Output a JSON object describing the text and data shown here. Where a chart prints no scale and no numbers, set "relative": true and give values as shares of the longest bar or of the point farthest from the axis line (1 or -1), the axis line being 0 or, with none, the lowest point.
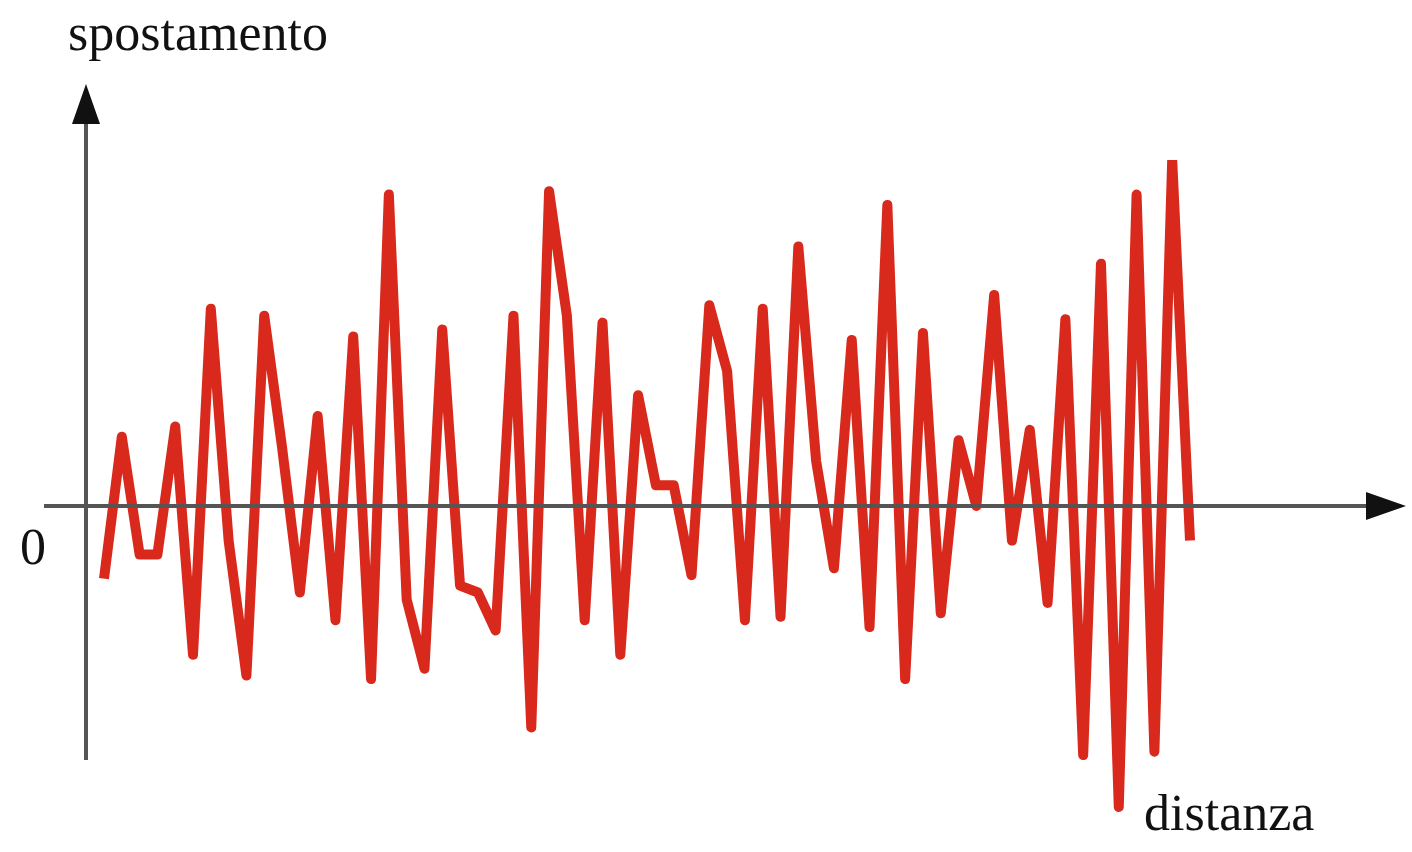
{
  "chart_data": {
    "type": "line",
    "relative": true,
    "xlabel": "distanza",
    "ylabel": "spostamento",
    "annotations": [
      "0"
    ],
    "legend": false,
    "marker": "none",
    "line_style": "solid",
    "categories": [
      null,
      null,
      null,
      null,
      null,
      null,
      null,
      null,
      null,
      null,
      null,
      null,
      null,
      null,
      null,
      null,
      null,
      null,
      null,
      null,
      null,
      null,
      null,
      null,
      null,
      null,
      null,
      null,
      null,
      null,
      null,
      null,
      null,
      null,
      null,
      null,
      null,
      null,
      null,
      null,
      null,
      null,
      null,
      null,
      null,
      null,
      null,
      null,
      null,
      null,
      null,
      null,
      null,
      null,
      null,
      null,
      null,
      null,
      null,
      null,
      null,
      null
    ],
    "series": [
      {
        "color": "#d9291c",
        "values": [
          -0.21,
          0.2,
          -0.14,
          -0.14,
          0.23,
          -0.43,
          0.57,
          -0.1,
          -0.49,
          0.55,
          0.17,
          -0.25,
          0.26,
          -0.33,
          0.49,
          -0.5,
          0.9,
          -0.27,
          -0.47,
          0.51,
          -0.23,
          -0.25,
          -0.36,
          0.55,
          -0.64,
          0.91,
          0.55,
          -0.33,
          0.53,
          -0.43,
          0.32,
          0.06,
          0.06,
          -0.2,
          0.58,
          0.39,
          -0.33,
          0.57,
          -0.32,
          0.75,
          0.13,
          -0.18,
          0.48,
          -0.35,
          0.87,
          -0.5,
          0.5,
          -0.31,
          0.19,
          0,
          0.61,
          -0.1,
          0.22,
          -0.28,
          0.54,
          -0.72,
          0.7,
          -0.87,
          0.9,
          -0.71,
          1,
          -0.1
        ]
      }
    ]
  }
}
